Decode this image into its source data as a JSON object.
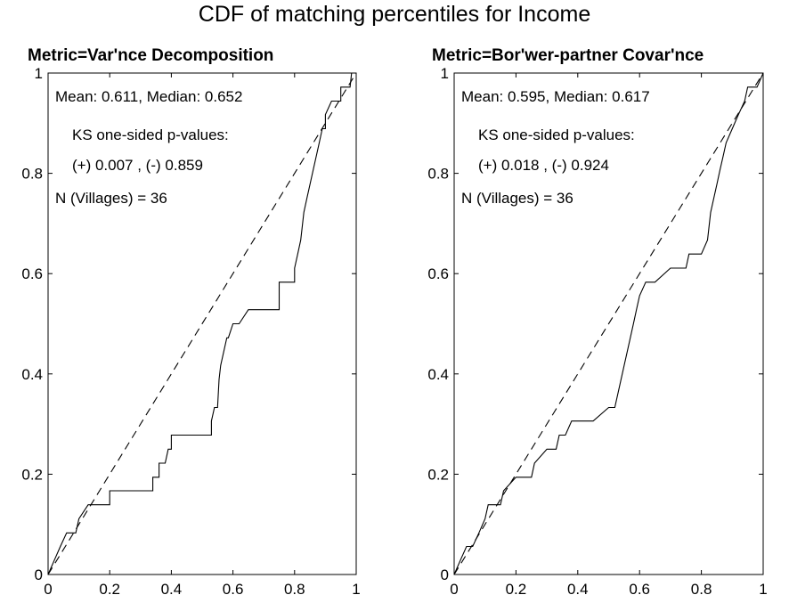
{
  "figure_title": "CDF of matching percentiles for Income",
  "chart_data": [
    {
      "type": "line",
      "title": "Metric=Var'nce Decomposition",
      "xlabel": "",
      "ylabel": "",
      "xlim": [
        0,
        1
      ],
      "ylim": [
        0,
        1
      ],
      "x_ticks": [
        "0",
        "0.2",
        "0.4",
        "0.6",
        "0.8",
        "1"
      ],
      "y_ticks": [
        "0",
        "0.2",
        "0.4",
        "0.6",
        "0.8",
        "1"
      ],
      "grid": false,
      "annotations": [
        "Mean: 0.611,  Median: 0.652",
        "KS one-sided p-values:",
        "(+) 0.007 ,  (-) 0.859",
        "N (Villages) = 36"
      ],
      "series": [
        {
          "style": "solid",
          "color": "#000000",
          "x": [
            0.0,
            0.02,
            0.04,
            0.06,
            0.09,
            0.1,
            0.13,
            0.2,
            0.2,
            0.27,
            0.34,
            0.34,
            0.36,
            0.36,
            0.38,
            0.39,
            0.4,
            0.4,
            0.42,
            0.45,
            0.53,
            0.53,
            0.54,
            0.55,
            0.555,
            0.56,
            0.57,
            0.58,
            0.585,
            0.6,
            0.62,
            0.65,
            0.66,
            0.69,
            0.72,
            0.75,
            0.75,
            0.8,
            0.8,
            0.81,
            0.82,
            0.83,
            0.84,
            0.85,
            0.86,
            0.87,
            0.88,
            0.89,
            0.9,
            0.9,
            0.92,
            0.95,
            0.95,
            0.97,
            0.98,
            0.985,
            0.99,
            1.0
          ],
          "y": [
            0.0,
            0.028,
            0.056,
            0.083,
            0.083,
            0.111,
            0.139,
            0.139,
            0.167,
            0.167,
            0.167,
            0.194,
            0.194,
            0.222,
            0.222,
            0.25,
            0.25,
            0.278,
            0.278,
            0.278,
            0.278,
            0.306,
            0.333,
            0.333,
            0.389,
            0.417,
            0.444,
            0.472,
            0.472,
            0.5,
            0.5,
            0.528,
            0.528,
            0.528,
            0.528,
            0.528,
            0.583,
            0.583,
            0.611,
            0.639,
            0.667,
            0.722,
            0.75,
            0.778,
            0.806,
            0.833,
            0.861,
            0.889,
            0.889,
            0.917,
            0.944,
            0.944,
            0.972,
            0.972,
            0.972,
            1.0,
            1.0,
            1.0
          ]
        },
        {
          "style": "dashed",
          "color": "#000000",
          "x": [
            0,
            1
          ],
          "y": [
            0,
            1
          ]
        }
      ]
    },
    {
      "type": "line",
      "title": "Metric=Bor'wer-partner Covar'nce",
      "xlabel": "",
      "ylabel": "",
      "xlim": [
        0,
        1
      ],
      "ylim": [
        0,
        1
      ],
      "x_ticks": [
        "0",
        "0.2",
        "0.4",
        "0.6",
        "0.8",
        "1"
      ],
      "y_ticks": [
        "0",
        "0.2",
        "0.4",
        "0.6",
        "0.8",
        "1"
      ],
      "grid": false,
      "annotations": [
        "Mean: 0.595,  Median: 0.617",
        "KS one-sided p-values:",
        "(+) 0.018 ,  (-) 0.924",
        "N (Villages) = 36"
      ],
      "series": [
        {
          "style": "solid",
          "color": "#000000",
          "x": [
            0.0,
            0.02,
            0.04,
            0.06,
            0.08,
            0.1,
            0.11,
            0.13,
            0.15,
            0.16,
            0.2,
            0.22,
            0.23,
            0.25,
            0.26,
            0.3,
            0.32,
            0.33,
            0.34,
            0.36,
            0.38,
            0.4,
            0.45,
            0.5,
            0.52,
            0.53,
            0.54,
            0.55,
            0.56,
            0.57,
            0.58,
            0.59,
            0.6,
            0.62,
            0.63,
            0.65,
            0.7,
            0.75,
            0.76,
            0.78,
            0.8,
            0.82,
            0.83,
            0.84,
            0.85,
            0.86,
            0.87,
            0.88,
            0.9,
            0.92,
            0.94,
            0.95,
            0.96,
            0.98,
            1.0
          ],
          "y": [
            0.0,
            0.028,
            0.056,
            0.056,
            0.083,
            0.111,
            0.139,
            0.139,
            0.139,
            0.167,
            0.194,
            0.194,
            0.194,
            0.194,
            0.222,
            0.25,
            0.25,
            0.25,
            0.278,
            0.278,
            0.306,
            0.306,
            0.306,
            0.333,
            0.333,
            0.361,
            0.389,
            0.417,
            0.444,
            0.472,
            0.5,
            0.528,
            0.556,
            0.583,
            0.583,
            0.583,
            0.611,
            0.611,
            0.639,
            0.639,
            0.639,
            0.667,
            0.722,
            0.75,
            0.778,
            0.806,
            0.833,
            0.861,
            0.889,
            0.917,
            0.944,
            0.972,
            0.972,
            0.972,
            1.0
          ]
        },
        {
          "style": "dashed",
          "color": "#000000",
          "x": [
            0,
            1
          ],
          "y": [
            0,
            1
          ]
        }
      ]
    }
  ]
}
